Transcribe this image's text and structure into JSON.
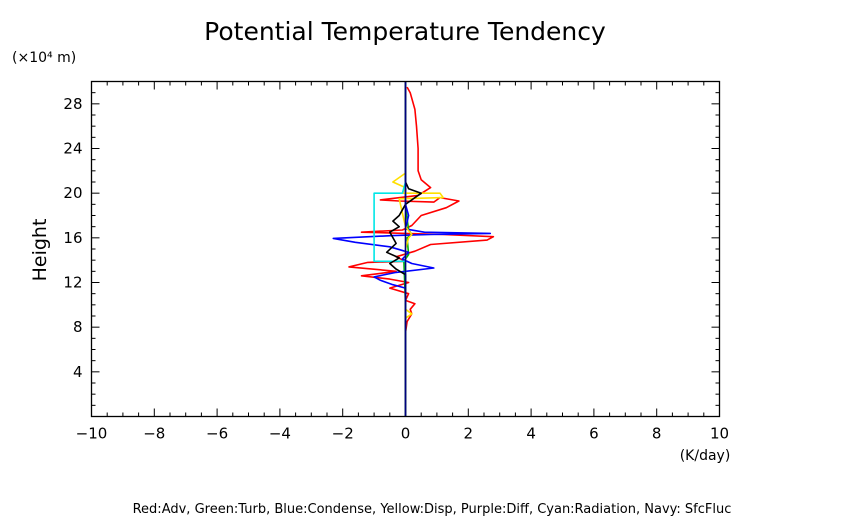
{
  "chart_data": {
    "type": "line",
    "title": "Potential Temperature Tendency",
    "xlabel": "",
    "ylabel": "Height",
    "x_unit_label": "(K/day)",
    "y_unit_label": "(×10⁴ m)",
    "xlim": [
      -10,
      10
    ],
    "ylim": [
      0,
      30
    ],
    "x_ticks": [
      -10,
      -8,
      -6,
      -4,
      -2,
      0,
      2,
      4,
      6,
      8,
      10
    ],
    "y_ticks": [
      4,
      8,
      12,
      16,
      20,
      24,
      28
    ],
    "legend_text": "Red:Adv, Green:Turb, Blue:Condense, Yellow:Disp, Purple:Diff, Cyan:Radiation, Navy: SfcFluc",
    "grid": false,
    "series": [
      {
        "color": "#ff0000",
        "points": [
          [
            0,
            0
          ],
          [
            0,
            7.5
          ],
          [
            0.05,
            8.5
          ],
          [
            0.2,
            9.2
          ],
          [
            0.15,
            9.6
          ],
          [
            0.3,
            10.1
          ],
          [
            0,
            10.4
          ],
          [
            0.1,
            11
          ],
          [
            -0.5,
            11.5
          ],
          [
            0.1,
            12
          ],
          [
            -0.5,
            12.3
          ],
          [
            -1.4,
            12.6
          ],
          [
            -0.3,
            13
          ],
          [
            -1.8,
            13.4
          ],
          [
            -1.2,
            13.8
          ],
          [
            0,
            13.9
          ],
          [
            -0.3,
            14.3
          ],
          [
            0.3,
            14.8
          ],
          [
            0.8,
            15.4
          ],
          [
            2.6,
            15.8
          ],
          [
            2.8,
            16.1
          ],
          [
            1.2,
            16.3
          ],
          [
            0,
            16.4
          ],
          [
            -1.4,
            16.5
          ],
          [
            -0.1,
            16.7
          ],
          [
            0.2,
            17.1
          ],
          [
            0.5,
            18
          ],
          [
            1.3,
            18.7
          ],
          [
            1.7,
            19.3
          ],
          [
            1.1,
            19.6
          ],
          [
            0.9,
            19.2
          ],
          [
            -0.2,
            19.3
          ],
          [
            -0.8,
            19.4
          ],
          [
            0.4,
            19.8
          ],
          [
            0.8,
            20.5
          ],
          [
            0.5,
            21.2
          ],
          [
            0.4,
            22
          ],
          [
            0.4,
            24
          ],
          [
            0.35,
            26
          ],
          [
            0.3,
            27.5
          ],
          [
            0.15,
            29
          ],
          [
            0.05,
            29.5
          ]
        ]
      },
      {
        "color": "#00b400",
        "points": [
          [
            0,
            0
          ],
          [
            0,
            10
          ],
          [
            -0.05,
            13.9
          ],
          [
            0.1,
            14.5
          ],
          [
            0.05,
            16
          ],
          [
            0.2,
            16.3
          ],
          [
            0.1,
            16.7
          ],
          [
            0,
            18.8
          ],
          [
            0,
            30
          ]
        ]
      },
      {
        "color": "#0000ff",
        "points": [
          [
            0,
            0
          ],
          [
            0,
            11.5
          ],
          [
            -0.4,
            11.8
          ],
          [
            -0.8,
            12.2
          ],
          [
            -1,
            12.5
          ],
          [
            -0.3,
            12.9
          ],
          [
            0.9,
            13.3
          ],
          [
            0.2,
            13.7
          ],
          [
            -0.1,
            14.1
          ],
          [
            0.1,
            14.7
          ],
          [
            -0.5,
            15.2
          ],
          [
            -1.6,
            15.6
          ],
          [
            -2.3,
            15.95
          ],
          [
            -0.4,
            16.2
          ],
          [
            0.8,
            16.3
          ],
          [
            2.7,
            16.4
          ],
          [
            0.6,
            16.5
          ],
          [
            0,
            16.8
          ],
          [
            0.1,
            18
          ],
          [
            0,
            19
          ],
          [
            0,
            30
          ]
        ]
      },
      {
        "color": "#ffe000",
        "points": [
          [
            0,
            0
          ],
          [
            0,
            8.8
          ],
          [
            0.2,
            9.2
          ],
          [
            0,
            9.6
          ],
          [
            0,
            15
          ],
          [
            0.1,
            16
          ],
          [
            0.2,
            16.3
          ],
          [
            0,
            17
          ],
          [
            -0.2,
            19.5
          ],
          [
            1.2,
            19.6
          ],
          [
            1.1,
            20
          ],
          [
            -0.1,
            20
          ],
          [
            0,
            20.5
          ],
          [
            -0.4,
            21
          ],
          [
            0,
            21.8
          ],
          [
            0,
            30
          ]
        ]
      },
      {
        "color": "#00e6e6",
        "points": [
          [
            0,
            0
          ],
          [
            0,
            13.9
          ],
          [
            -1,
            13.9
          ],
          [
            -1,
            20
          ],
          [
            -0.1,
            20
          ],
          [
            0,
            21
          ],
          [
            0,
            30
          ]
        ]
      },
      {
        "color": "#000000",
        "points": [
          [
            0,
            0
          ],
          [
            0,
            12.7
          ],
          [
            -0.3,
            13.2
          ],
          [
            -0.5,
            13.7
          ],
          [
            -0.2,
            14.2
          ],
          [
            -0.6,
            14.7
          ],
          [
            -0.3,
            15.5
          ],
          [
            -0.5,
            16.5
          ],
          [
            -0.2,
            17
          ],
          [
            -0.4,
            17.5
          ],
          [
            -0.2,
            18
          ],
          [
            0,
            19
          ],
          [
            0.5,
            20
          ],
          [
            0.1,
            20.4
          ],
          [
            0,
            21
          ],
          [
            0,
            30
          ]
        ]
      },
      {
        "color": "#000080",
        "points": [
          [
            0,
            0
          ],
          [
            0,
            30
          ]
        ]
      }
    ]
  }
}
